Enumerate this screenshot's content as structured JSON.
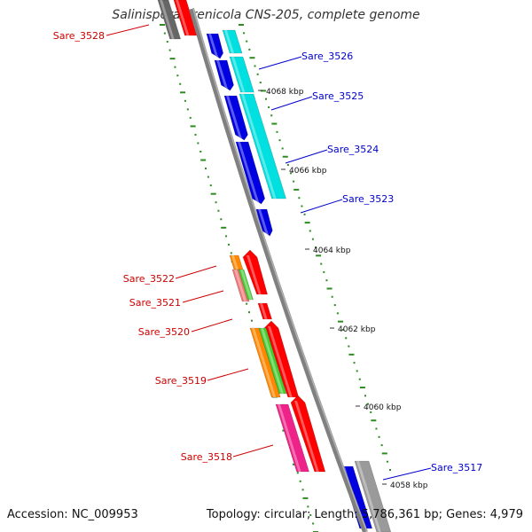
{
  "title": "Salinispora arenicola CNS-205, complete genome",
  "footer": {
    "accession": "Accession: NC_009953",
    "summary": "Topology: circular; Length: 5,786,361 bp; Genes: 4,979"
  },
  "colors": {
    "backbone": "#808080",
    "tick": "#2e8b22",
    "forward_label": "#0000cc",
    "reverse_label": "#cc0000",
    "dark_blue": "#0000e0",
    "cyan": "#00e0e0",
    "red": "#ff0000",
    "orange": "#ff8800",
    "green": "#44cc33",
    "pink": "#ee2288",
    "salmon": "#ee7777",
    "gray": "#9a9a9a",
    "dark_gray": "#666666"
  },
  "ticks": {
    "labels": [
      "4068 kbp",
      "4066 kbp",
      "4064 kbp",
      "4062 kbp",
      "4060 kbp",
      "4058 kbp"
    ]
  },
  "genes": {
    "forward": [
      "Sare_3526",
      "Sare_3525",
      "Sare_3524",
      "Sare_3523",
      "Sare_3517"
    ],
    "reverse": [
      "Sare_3528",
      "Sare_3522",
      "Sare_3521",
      "Sare_3520",
      "Sare_3519",
      "Sare_3518"
    ]
  }
}
